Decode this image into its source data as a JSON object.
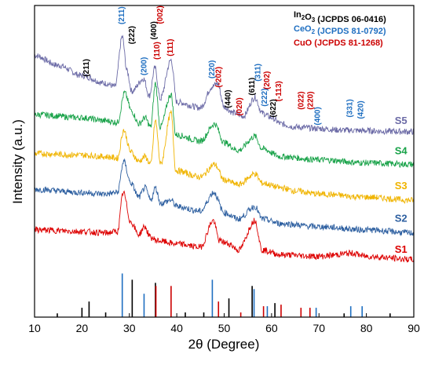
{
  "chart_data": {
    "type": "line",
    "title": "",
    "xlabel": "2θ (Degree)",
    "ylabel": "Intensity (a.u.)",
    "xlim": [
      10,
      90
    ],
    "xticks": [
      "10",
      "20",
      "30",
      "40",
      "50",
      "60",
      "70",
      "80",
      "90"
    ],
    "legend": {
      "placement": "top-right",
      "entries": [
        {
          "name": "In",
          "sub": "2",
          "mid": "O",
          "sub2": "3",
          "rest": " (JCPDS 06-0416)",
          "color": "#000000"
        },
        {
          "name": "CeO",
          "sub": "2",
          "mid": "",
          "sub2": "",
          "rest": " (JCPDS 81-0792)",
          "color": "#1f6fc1"
        },
        {
          "name": "CuO",
          "sub": "",
          "mid": "",
          "sub2": "",
          "rest": " (JCPDS 81-1268)",
          "color": "#cc0000"
        }
      ]
    },
    "series": [
      {
        "name": "S5",
        "color": "#6b6aa6",
        "offset": 0.815,
        "noise": 0.01,
        "points": [
          [
            10,
            0.84
          ],
          [
            15,
            0.808
          ],
          [
            20,
            0.775
          ],
          [
            25,
            0.75
          ],
          [
            27,
            0.74
          ],
          [
            28.5,
            0.9
          ],
          [
            29.5,
            0.79
          ],
          [
            30.5,
            0.725
          ],
          [
            33,
            0.765
          ],
          [
            34.2,
            0.71
          ],
          [
            35.4,
            0.8
          ],
          [
            36.5,
            0.7
          ],
          [
            38.8,
            0.825
          ],
          [
            40,
            0.69
          ],
          [
            45,
            0.672
          ],
          [
            47.5,
            0.74
          ],
          [
            48.6,
            0.75
          ],
          [
            50,
            0.675
          ],
          [
            52,
            0.655
          ],
          [
            54,
            0.645
          ],
          [
            56.5,
            0.705
          ],
          [
            58,
            0.655
          ],
          [
            60,
            0.64
          ],
          [
            62,
            0.62
          ],
          [
            65,
            0.61
          ],
          [
            70,
            0.605
          ],
          [
            75,
            0.6
          ],
          [
            80,
            0.598
          ],
          [
            85,
            0.596
          ],
          [
            90,
            0.595
          ]
        ]
      },
      {
        "name": "S4",
        "color": "#1aa34a",
        "offset": 0.0,
        "noise": 0.01,
        "points": [
          [
            10,
            0.65
          ],
          [
            20,
            0.64
          ],
          [
            25,
            0.63
          ],
          [
            27.5,
            0.625
          ],
          [
            29,
            0.72
          ],
          [
            30.5,
            0.66
          ],
          [
            32,
            0.62
          ],
          [
            33.3,
            0.64
          ],
          [
            34.5,
            0.61
          ],
          [
            35.5,
            0.75
          ],
          [
            36.5,
            0.61
          ],
          [
            38.8,
            0.715
          ],
          [
            39.8,
            0.585
          ],
          [
            45,
            0.565
          ],
          [
            48,
            0.62
          ],
          [
            50,
            0.56
          ],
          [
            53,
            0.535
          ],
          [
            56.5,
            0.58
          ],
          [
            58,
            0.54
          ],
          [
            62,
            0.515
          ],
          [
            70,
            0.505
          ],
          [
            80,
            0.495
          ],
          [
            90,
            0.49
          ]
        ]
      },
      {
        "name": "S3",
        "color": "#f0b400",
        "offset": 0.0,
        "noise": 0.01,
        "points": [
          [
            10,
            0.525
          ],
          [
            20,
            0.52
          ],
          [
            25,
            0.515
          ],
          [
            27.5,
            0.51
          ],
          [
            28.8,
            0.6
          ],
          [
            30.3,
            0.53
          ],
          [
            32,
            0.5
          ],
          [
            33.3,
            0.515
          ],
          [
            34.5,
            0.49
          ],
          [
            35.5,
            0.63
          ],
          [
            36.6,
            0.49
          ],
          [
            38.8,
            0.655
          ],
          [
            39.8,
            0.47
          ],
          [
            45,
            0.45
          ],
          [
            48,
            0.49
          ],
          [
            50,
            0.44
          ],
          [
            53,
            0.425
          ],
          [
            56.5,
            0.46
          ],
          [
            58,
            0.43
          ],
          [
            62,
            0.415
          ],
          [
            65,
            0.405
          ],
          [
            70,
            0.395
          ],
          [
            80,
            0.385
          ],
          [
            90,
            0.375
          ]
        ]
      },
      {
        "name": "S2",
        "color": "#2d5fa0",
        "offset": 0.0,
        "noise": 0.01,
        "points": [
          [
            10,
            0.41
          ],
          [
            20,
            0.4
          ],
          [
            25,
            0.395
          ],
          [
            27.5,
            0.4
          ],
          [
            28.8,
            0.5
          ],
          [
            30.3,
            0.43
          ],
          [
            32,
            0.385
          ],
          [
            33.3,
            0.415
          ],
          [
            34.5,
            0.375
          ],
          [
            35.5,
            0.415
          ],
          [
            36.6,
            0.365
          ],
          [
            38.8,
            0.375
          ],
          [
            40,
            0.355
          ],
          [
            45,
            0.34
          ],
          [
            47.8,
            0.4
          ],
          [
            50,
            0.335
          ],
          [
            53,
            0.315
          ],
          [
            56.5,
            0.355
          ],
          [
            58,
            0.315
          ],
          [
            62,
            0.3
          ],
          [
            70,
            0.29
          ],
          [
            80,
            0.28
          ],
          [
            90,
            0.27
          ]
        ]
      },
      {
        "name": "S1",
        "color": "#dd0000",
        "offset": 0.0,
        "noise": 0.01,
        "points": [
          [
            10,
            0.28
          ],
          [
            20,
            0.275
          ],
          [
            25,
            0.27
          ],
          [
            27.5,
            0.275
          ],
          [
            28.7,
            0.4
          ],
          [
            30.3,
            0.305
          ],
          [
            32,
            0.265
          ],
          [
            33.2,
            0.29
          ],
          [
            34.5,
            0.255
          ],
          [
            36,
            0.245
          ],
          [
            40,
            0.235
          ],
          [
            45,
            0.225
          ],
          [
            47.7,
            0.31
          ],
          [
            49,
            0.245
          ],
          [
            51,
            0.235
          ],
          [
            53,
            0.215
          ],
          [
            56.5,
            0.31
          ],
          [
            58,
            0.215
          ],
          [
            62,
            0.2
          ],
          [
            70,
            0.195
          ],
          [
            77,
            0.205
          ],
          [
            80,
            0.195
          ],
          [
            90,
            0.185
          ]
        ]
      }
    ],
    "sample_labels": [
      {
        "text": "S5",
        "x": 87.3,
        "y": 0.62,
        "color": "#6b6aa6"
      },
      {
        "text": "S4",
        "x": 87.3,
        "y": 0.523,
        "color": "#1aa34a"
      },
      {
        "text": "S3",
        "x": 87.3,
        "y": 0.41,
        "color": "#f0b400"
      },
      {
        "text": "S2",
        "x": 87.3,
        "y": 0.306,
        "color": "#2d5fa0"
      },
      {
        "text": "S1",
        "x": 87.3,
        "y": 0.207,
        "color": "#dd0000"
      }
    ],
    "reference_lines": [
      {
        "x": 14.8,
        "h": 0.012,
        "color": "#000000"
      },
      {
        "x": 20.0,
        "h": 0.03,
        "color": "#000000"
      },
      {
        "x": 21.5,
        "h": 0.05,
        "color": "#000000"
      },
      {
        "x": 25.0,
        "h": 0.015,
        "color": "#000000"
      },
      {
        "x": 28.5,
        "h": 0.14,
        "color": "#1f6fc1"
      },
      {
        "x": 30.6,
        "h": 0.12,
        "color": "#000000"
      },
      {
        "x": 33.1,
        "h": 0.075,
        "color": "#1f6fc1"
      },
      {
        "x": 35.5,
        "h": 0.11,
        "color": "#000000"
      },
      {
        "x": 35.6,
        "h": 0.1,
        "color": "#cc0000"
      },
      {
        "x": 38.8,
        "h": 0.1,
        "color": "#cc0000"
      },
      {
        "x": 41.8,
        "h": 0.015,
        "color": "#000000"
      },
      {
        "x": 45.7,
        "h": 0.015,
        "color": "#000000"
      },
      {
        "x": 47.5,
        "h": 0.12,
        "color": "#1f6fc1"
      },
      {
        "x": 48.8,
        "h": 0.05,
        "color": "#cc0000"
      },
      {
        "x": 51.0,
        "h": 0.06,
        "color": "#000000"
      },
      {
        "x": 53.5,
        "h": 0.015,
        "color": "#cc0000"
      },
      {
        "x": 55.9,
        "h": 0.1,
        "color": "#000000"
      },
      {
        "x": 56.3,
        "h": 0.09,
        "color": "#1f6fc1"
      },
      {
        "x": 58.3,
        "h": 0.035,
        "color": "#cc0000"
      },
      {
        "x": 59.1,
        "h": 0.035,
        "color": "#1f6fc1"
      },
      {
        "x": 60.7,
        "h": 0.045,
        "color": "#000000"
      },
      {
        "x": 62.0,
        "h": 0.04,
        "color": "#cc0000"
      },
      {
        "x": 66.2,
        "h": 0.03,
        "color": "#cc0000"
      },
      {
        "x": 68.1,
        "h": 0.03,
        "color": "#cc0000"
      },
      {
        "x": 69.4,
        "h": 0.03,
        "color": "#1f6fc1"
      },
      {
        "x": 75.3,
        "h": 0.012,
        "color": "#000000"
      },
      {
        "x": 76.7,
        "h": 0.035,
        "color": "#1f6fc1"
      },
      {
        "x": 79.1,
        "h": 0.035,
        "color": "#1f6fc1"
      },
      {
        "x": 85.0,
        "h": 0.012,
        "color": "#000000"
      }
    ],
    "peak_labels": [
      {
        "text": "(211)",
        "x": 21.0,
        "y": 0.8,
        "color": "#000000"
      },
      {
        "text": "(211)",
        "x": 28.5,
        "y": 0.968,
        "color": "#1f6fc1"
      },
      {
        "text": "(222)",
        "x": 30.6,
        "y": 0.905,
        "color": "#000000"
      },
      {
        "text": "(200)",
        "x": 33.2,
        "y": 0.805,
        "color": "#1f6fc1"
      },
      {
        "text": "(400)",
        "x": 35.3,
        "y": 0.92,
        "color": "#000000"
      },
      {
        "text": "(002)",
        "x": 36.6,
        "y": 0.97,
        "color": "#cc0000"
      },
      {
        "text": "(110)",
        "x": 35.9,
        "y": 0.855,
        "color": "#cc0000"
      },
      {
        "text": "(111)",
        "x": 38.7,
        "y": 0.865,
        "color": "#cc0000"
      },
      {
        "text": "(220)",
        "x": 47.5,
        "y": 0.795,
        "color": "#1f6fc1"
      },
      {
        "text": "(-202)",
        "x": 48.9,
        "y": 0.77,
        "color": "#cc0000"
      },
      {
        "text": "(440)",
        "x": 50.9,
        "y": 0.7,
        "color": "#000000"
      },
      {
        "text": "(020)",
        "x": 53.3,
        "y": 0.675,
        "color": "#cc0000"
      },
      {
        "text": "(611)",
        "x": 56.0,
        "y": 0.74,
        "color": "#000000"
      },
      {
        "text": "(311)",
        "x": 57.2,
        "y": 0.785,
        "color": "#1f6fc1"
      },
      {
        "text": "(222)",
        "x": 58.6,
        "y": 0.705,
        "color": "#1f6fc1"
      },
      {
        "text": "(202)",
        "x": 59.1,
        "y": 0.76,
        "color": "#cc0000"
      },
      {
        "text": "(622)",
        "x": 60.4,
        "y": 0.67,
        "color": "#000000"
      },
      {
        "text": "(-113)",
        "x": 61.6,
        "y": 0.725,
        "color": "#cc0000"
      },
      {
        "text": "(022)",
        "x": 66.3,
        "y": 0.695,
        "color": "#cc0000"
      },
      {
        "text": "(220)",
        "x": 68.3,
        "y": 0.695,
        "color": "#cc0000"
      },
      {
        "text": "(400)",
        "x": 69.8,
        "y": 0.645,
        "color": "#1f6fc1"
      },
      {
        "text": "(331)",
        "x": 76.6,
        "y": 0.67,
        "color": "#1f6fc1"
      },
      {
        "text": "(420)",
        "x": 78.9,
        "y": 0.665,
        "color": "#1f6fc1"
      }
    ]
  }
}
